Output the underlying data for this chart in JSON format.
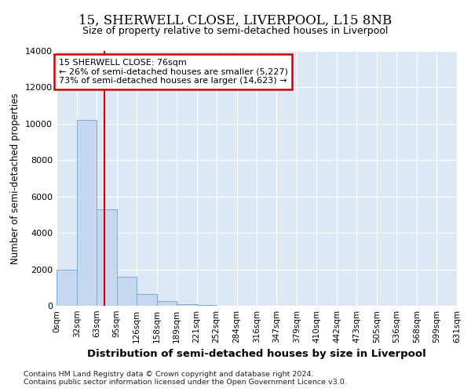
{
  "title_line1": "15, SHERWELL CLOSE, LIVERPOOL, L15 8NB",
  "title_line2": "Size of property relative to semi-detached houses in Liverpool",
  "xlabel": "Distribution of semi-detached houses by size in Liverpool",
  "ylabel": "Number of semi-detached properties",
  "footnote_line1": "Contains HM Land Registry data © Crown copyright and database right 2024.",
  "footnote_line2": "Contains public sector information licensed under the Open Government Licence v3.0.",
  "property_size": 76,
  "property_label": "15 SHERWELL CLOSE: 76sqm",
  "pct_smaller": 26,
  "pct_larger": 73,
  "n_smaller": 5227,
  "n_larger": 14623,
  "bin_labels": [
    "0sqm",
    "32sqm",
    "63sqm",
    "95sqm",
    "126sqm",
    "158sqm",
    "189sqm",
    "221sqm",
    "252sqm",
    "284sqm",
    "316sqm",
    "347sqm",
    "379sqm",
    "410sqm",
    "442sqm",
    "473sqm",
    "505sqm",
    "536sqm",
    "568sqm",
    "599sqm",
    "631sqm"
  ],
  "bin_edges": [
    0,
    32,
    63,
    95,
    126,
    158,
    189,
    221,
    252,
    284,
    316,
    347,
    379,
    410,
    442,
    473,
    505,
    536,
    568,
    599,
    631
  ],
  "bar_values": [
    2000,
    10200,
    5300,
    1600,
    650,
    250,
    100,
    60,
    0,
    0,
    0,
    0,
    0,
    0,
    0,
    0,
    0,
    0,
    0,
    0
  ],
  "bar_color": "#c5d8f0",
  "bar_edge_color": "#7badd4",
  "property_line_color": "#cc0000",
  "annotation_box_color": "#cc0000",
  "background_color": "#dde8f5",
  "grid_color": "#ffffff",
  "ylim": [
    0,
    14000
  ],
  "yticks": [
    0,
    2000,
    4000,
    6000,
    8000,
    10000,
    12000,
    14000
  ]
}
